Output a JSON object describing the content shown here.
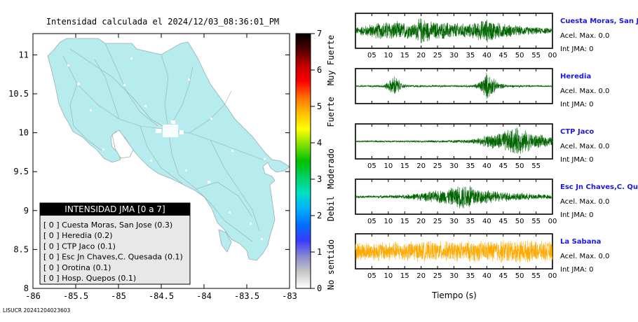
{
  "map": {
    "title": "Intensidad calculada el 2024/12/03_08:36:01_PM",
    "lon_ticks": [
      "-86",
      "-85.5",
      "-85",
      "-84.5",
      "-84",
      "-83.5",
      "-83"
    ],
    "lat_ticks": [
      "11",
      "10.5",
      "10",
      "9.5",
      "9",
      "8.5",
      "8"
    ],
    "fill_color": "#b6ecee",
    "footer": "LISUCR 20241204023603"
  },
  "legend": {
    "header": "INTENSIDAD JMA [0 a 7]",
    "items": [
      "[ 0 ]  Cuesta Moras, San Jose (0.3)",
      "[ 0 ]  Heredia (0.2)",
      "[ 0 ]  CTP Jaco (0.1)",
      "[ 0 ]  Esc Jn Chaves,C. Quesada (0.1)",
      "[ 0 ]  Orotina (0.1)",
      "[ 0 ]  Hosp. Quepos (0.1)"
    ]
  },
  "colorbar": {
    "ticks": [
      "7",
      "6",
      "5",
      "4",
      "3",
      "2",
      "1",
      "0"
    ],
    "labels": [
      "Muy Fuerte",
      "Fuerte",
      "Moderado",
      "Debil",
      "No sentido"
    ],
    "colors": [
      "#ffffff",
      "#c9c9c9",
      "#8a8ad0",
      "#3a3aff",
      "#0070ff",
      "#00b0ff",
      "#00e0c0",
      "#00d060",
      "#00c000",
      "#80e000",
      "#ffff00",
      "#ffc000",
      "#ff7000",
      "#ff0000",
      "#c00000",
      "#500000",
      "#000000"
    ]
  },
  "chart_data": {
    "type": "line",
    "xlabel": "Tiempo (s)",
    "xlim": [
      0,
      60
    ],
    "x_tick_labels": [
      "05",
      "10",
      "15",
      "20",
      "25",
      "30",
      "35",
      "40",
      "45",
      "50",
      "55",
      "00"
    ],
    "series": [
      {
        "name": "Cuesta Moras, San Jose",
        "acel_label": "Acel. Max. 0.0",
        "int_label": "Int JMA: 0",
        "color": "#006400",
        "envelope": [
          [
            0,
            0.25
          ],
          [
            5,
            0.5
          ],
          [
            10,
            0.7
          ],
          [
            15,
            0.6
          ],
          [
            18,
            0.55
          ],
          [
            20,
            1.0
          ],
          [
            23,
            0.65
          ],
          [
            28,
            0.6
          ],
          [
            35,
            0.5
          ],
          [
            40,
            0.85
          ],
          [
            44,
            0.55
          ],
          [
            50,
            0.35
          ],
          [
            55,
            0.25
          ],
          [
            60,
            0.2
          ]
        ]
      },
      {
        "name": "Heredia",
        "acel_label": "Acel. Max. 0.0",
        "int_label": "Int JMA: 0",
        "color": "#006400",
        "envelope": [
          [
            0,
            0.05
          ],
          [
            8,
            0.08
          ],
          [
            10,
            0.3
          ],
          [
            12,
            0.8
          ],
          [
            14,
            0.2
          ],
          [
            16,
            0.08
          ],
          [
            30,
            0.06
          ],
          [
            36,
            0.1
          ],
          [
            38,
            0.35
          ],
          [
            40,
            1.0
          ],
          [
            42,
            0.55
          ],
          [
            44,
            0.2
          ],
          [
            47,
            0.08
          ],
          [
            60,
            0.05
          ]
        ]
      },
      {
        "name": "CTP Jaco",
        "acel_label": "Acel. Max. 0.0",
        "int_label": "Int JMA: 0",
        "color": "#006400",
        "envelope": [
          [
            0,
            0.05
          ],
          [
            20,
            0.07
          ],
          [
            30,
            0.1
          ],
          [
            35,
            0.15
          ],
          [
            40,
            0.4
          ],
          [
            44,
            0.65
          ],
          [
            47,
            0.85
          ],
          [
            49,
            1.0
          ],
          [
            52,
            0.75
          ],
          [
            55,
            0.5
          ],
          [
            58,
            0.4
          ],
          [
            60,
            0.3
          ]
        ]
      },
      {
        "name": "Esc Jn Chaves,C. Ques",
        "acel_label": "Acel. Max. 0.0",
        "int_label": "Int JMA: 0",
        "color": "#006400",
        "envelope": [
          [
            0,
            0.08
          ],
          [
            10,
            0.1
          ],
          [
            15,
            0.15
          ],
          [
            22,
            0.35
          ],
          [
            28,
            0.55
          ],
          [
            33,
            0.9
          ],
          [
            35,
            1.0
          ],
          [
            37,
            0.6
          ],
          [
            42,
            0.4
          ],
          [
            48,
            0.3
          ],
          [
            55,
            0.2
          ],
          [
            60,
            0.15
          ]
        ]
      },
      {
        "name": "La Sabana",
        "acel_label": "Acel. Max. 0.0",
        "int_label": "Int JMA: 0",
        "color": "#ffaa00",
        "envelope": [
          [
            0,
            0.65
          ],
          [
            10,
            0.7
          ],
          [
            20,
            0.7
          ],
          [
            30,
            0.7
          ],
          [
            40,
            0.75
          ],
          [
            45,
            0.85
          ],
          [
            50,
            0.8
          ],
          [
            55,
            0.75
          ],
          [
            60,
            0.7
          ]
        ]
      }
    ]
  }
}
